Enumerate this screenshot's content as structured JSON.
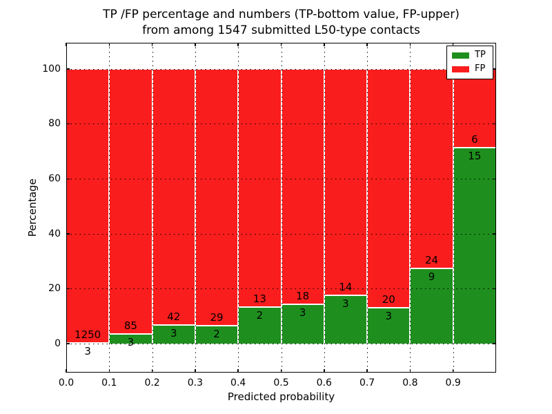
{
  "figure": {
    "background": "#ffffff",
    "text_color": "#000000"
  },
  "chart_data": {
    "type": "bar",
    "subtype": "stacked-percentage-histogram",
    "title_lines": [
      "TP /FP percentage and numbers (TP-bottom value, FP-upper)",
      "from among 1547 submitted L50-type contacts"
    ],
    "title": "TP /FP percentage and numbers (TP-bottom value, FP-upper) from among 1547 submitted L50-type contacts",
    "xlabel": "Predicted probability",
    "ylabel": "Percentage",
    "total_contacts": 1547,
    "stack_total_percent": 100,
    "grid": true,
    "grid_style": "dotted-black",
    "bar_edge_color": "#ffffff",
    "xlim": [
      0.0,
      1.0
    ],
    "ylim": [
      -10.6,
      109.5
    ],
    "bin_width": 0.1,
    "xticks": [
      "0.0",
      "0.1",
      "0.2",
      "0.3",
      "0.4",
      "0.5",
      "0.6",
      "0.7",
      "0.8",
      "0.9"
    ],
    "yticks": [
      0,
      20,
      40,
      60,
      80,
      100
    ],
    "series": [
      {
        "name": "TP",
        "color": "#1e8f1e",
        "stack_position": "bottom"
      },
      {
        "name": "FP",
        "color": "#fa1d1d",
        "stack_position": "top"
      }
    ],
    "bins": [
      {
        "x_start": 0.0,
        "x_end": 0.1,
        "tp": 3,
        "fp": 1250
      },
      {
        "x_start": 0.1,
        "x_end": 0.2,
        "tp": 3,
        "fp": 85
      },
      {
        "x_start": 0.2,
        "x_end": 0.3,
        "tp": 3,
        "fp": 42
      },
      {
        "x_start": 0.3,
        "x_end": 0.4,
        "tp": 2,
        "fp": 29
      },
      {
        "x_start": 0.4,
        "x_end": 0.5,
        "tp": 2,
        "fp": 13
      },
      {
        "x_start": 0.5,
        "x_end": 0.6,
        "tp": 3,
        "fp": 18
      },
      {
        "x_start": 0.6,
        "x_end": 0.7,
        "tp": 3,
        "fp": 14
      },
      {
        "x_start": 0.7,
        "x_end": 0.8,
        "tp": 3,
        "fp": 20
      },
      {
        "x_start": 0.8,
        "x_end": 0.9,
        "tp": 9,
        "fp": 24
      },
      {
        "x_start": 0.9,
        "x_end": 1.0,
        "tp": 15,
        "fp": 6
      }
    ],
    "legend": {
      "position": "upper-right",
      "entries": [
        {
          "label": "TP",
          "color": "#1e8f1e"
        },
        {
          "label": "FP",
          "color": "#fa1d1d"
        }
      ]
    }
  }
}
